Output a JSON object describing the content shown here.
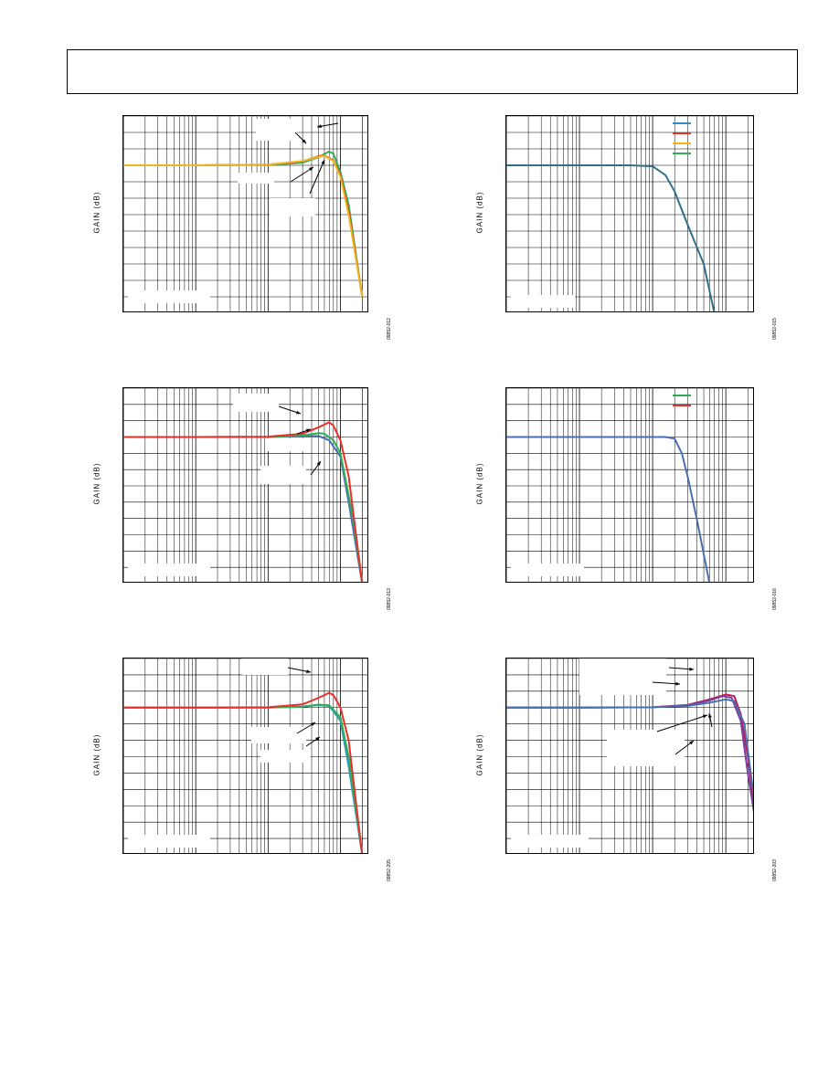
{
  "charts": [
    {
      "id": "p1",
      "ylabel": "GAIN (dB)",
      "figure_id": "09852-012",
      "colors": [
        "#2fae5a",
        "#e8302a",
        "#f2b51d"
      ],
      "legend": [],
      "annotation_arrows": 4
    },
    {
      "id": "p2",
      "ylabel": "GAIN (dB)",
      "figure_id": "09852-015",
      "colors": [
        "#2f6f8c",
        "#e8302a",
        "#f2b51d",
        "#2fae5a"
      ],
      "legend": [
        {
          "color": "#2f8ccf",
          "name": ""
        },
        {
          "color": "#e8302a",
          "name": ""
        },
        {
          "color": "#f2b51d",
          "name": ""
        },
        {
          "color": "#2fae5a",
          "name": ""
        }
      ],
      "annotation_arrows": 0
    },
    {
      "id": "p3",
      "ylabel": "GAIN (dB)",
      "figure_id": "09852-013",
      "colors": [
        "#4a6fb0",
        "#2fae5a",
        "#e8302a"
      ],
      "legend": [],
      "annotation_arrows": 3
    },
    {
      "id": "p4",
      "ylabel": "GAIN (dB)",
      "figure_id": "09852-016",
      "colors": [
        "#4a6fb0",
        "#c0184d"
      ],
      "legend": [
        {
          "color": "#2fae5a",
          "name": ""
        },
        {
          "color": "#e8302a",
          "name": ""
        }
      ],
      "annotation_arrows": 0
    },
    {
      "id": "p5",
      "ylabel": "GAIN (dB)",
      "figure_id": "09852-205",
      "colors": [
        "#2f9ab5",
        "#2fae5a",
        "#e8302a"
      ],
      "legend": [],
      "annotation_arrows": 3
    },
    {
      "id": "p6",
      "ylabel": "GAIN (dB)",
      "figure_id": "09852-203",
      "colors": [
        "#c0184d",
        "#7a3fa0",
        "#4a6fb0",
        "#e8302a"
      ],
      "legend": [],
      "annotation_arrows": 5
    }
  ],
  "chart_data": [
    {
      "type": "line",
      "title": "",
      "xlabel": "",
      "ylabel": "GAIN (dB)",
      "x_scale": "log",
      "grid": true,
      "series": [
        {
          "x": [
            0.001,
            0.01,
            0.1,
            0.3,
            0.5,
            0.7,
            0.8,
            1.0,
            1.3,
            2.0
          ],
          "y": [
            0,
            0,
            0.1,
            0.8,
            2.5,
            4.2,
            3.5,
            -2,
            -12,
            -40
          ]
        },
        {
          "x": [
            0.001,
            0.01,
            0.1,
            0.3,
            0.5,
            0.6,
            0.8,
            1.0,
            1.3,
            2.0
          ],
          "y": [
            0,
            0,
            0.2,
            1.2,
            2.8,
            3.0,
            1.5,
            -3,
            -14,
            -40
          ]
        },
        {
          "x": [
            0.001,
            0.01,
            0.1,
            0.3,
            0.5,
            0.6,
            0.8,
            1.0,
            1.3,
            2.0
          ],
          "y": [
            0,
            0,
            0.2,
            1.3,
            2.6,
            2.9,
            1.3,
            -3.5,
            -15,
            -40
          ]
        }
      ]
    },
    {
      "type": "line",
      "title": "",
      "xlabel": "",
      "ylabel": "GAIN (dB)",
      "x_scale": "log",
      "grid": true,
      "legend_position": "top-right",
      "series": [
        {
          "x": [
            0.001,
            0.01,
            0.05,
            0.1,
            0.15,
            0.2,
            0.3,
            0.5,
            0.7
          ],
          "y": [
            0,
            0,
            0,
            -0.3,
            -3,
            -8,
            -18,
            -30,
            -45
          ]
        }
      ]
    },
    {
      "type": "line",
      "title": "",
      "xlabel": "",
      "ylabel": "GAIN (dB)",
      "x_scale": "log",
      "grid": true,
      "series": [
        {
          "x": [
            0.001,
            0.01,
            0.1,
            0.3,
            0.5,
            0.7,
            1.0,
            1.3,
            2.0
          ],
          "y": [
            0,
            0,
            0,
            0.2,
            0.3,
            -1,
            -6,
            -20,
            -45
          ]
        },
        {
          "x": [
            0.001,
            0.01,
            0.1,
            0.3,
            0.5,
            0.6,
            0.8,
            1.0,
            1.5,
            2.0
          ],
          "y": [
            0,
            0,
            0,
            0.5,
            1.2,
            1.0,
            -1,
            -5,
            -25,
            -45
          ]
        },
        {
          "x": [
            0.001,
            0.01,
            0.1,
            0.3,
            0.5,
            0.7,
            0.8,
            1.0,
            1.3,
            2.0
          ],
          "y": [
            0,
            0,
            0.1,
            1.0,
            3.0,
            4.5,
            3.5,
            -1,
            -12,
            -45
          ]
        }
      ]
    },
    {
      "type": "line",
      "title": "",
      "xlabel": "",
      "ylabel": "GAIN (dB)",
      "x_scale": "log",
      "grid": true,
      "legend_position": "top-right",
      "series": [
        {
          "x": [
            0.001,
            0.01,
            0.1,
            0.15,
            0.2,
            0.25,
            0.3,
            0.4,
            0.6
          ],
          "y": [
            0,
            0,
            0,
            0,
            -0.5,
            -5,
            -12,
            -25,
            -45
          ]
        }
      ]
    },
    {
      "type": "line",
      "title": "",
      "xlabel": "",
      "ylabel": "GAIN (dB)",
      "x_scale": "log",
      "grid": true,
      "series": [
        {
          "x": [
            0.001,
            0.01,
            0.1,
            0.3,
            0.5,
            0.7,
            1.0,
            1.3,
            2.0
          ],
          "y": [
            0,
            0,
            0,
            0.3,
            0.8,
            0.5,
            -4,
            -18,
            -45
          ]
        },
        {
          "x": [
            0.001,
            0.01,
            0.1,
            0.3,
            0.5,
            0.7,
            1.0,
            1.3,
            2.0
          ],
          "y": [
            0,
            0,
            0,
            0.3,
            0.9,
            0.7,
            -3,
            -15,
            -45
          ]
        },
        {
          "x": [
            0.001,
            0.01,
            0.1,
            0.3,
            0.5,
            0.7,
            0.8,
            1.0,
            1.3,
            2.0
          ],
          "y": [
            0,
            0,
            0.1,
            1.0,
            3.0,
            4.5,
            3.8,
            0,
            -10,
            -45
          ]
        }
      ]
    },
    {
      "type": "line",
      "title": "",
      "xlabel": "",
      "ylabel": "GAIN (dB)",
      "x_scale": "log",
      "grid": true,
      "series": [
        {
          "x": [
            0.001,
            0.01,
            0.1,
            0.3,
            0.6,
            1.0,
            1.3,
            1.6,
            2.0,
            3.0
          ],
          "y": [
            0,
            0,
            0.1,
            0.8,
            2.5,
            4.0,
            3.5,
            -2,
            -15,
            -45
          ]
        },
        {
          "x": [
            0.001,
            0.01,
            0.1,
            0.3,
            0.6,
            0.9,
            1.2,
            1.6,
            2.0,
            3.0
          ],
          "y": [
            0,
            0,
            0.1,
            0.7,
            2.2,
            3.5,
            3.0,
            -4,
            -20,
            -45
          ]
        },
        {
          "x": [
            0.001,
            0.01,
            0.1,
            0.3,
            0.6,
            1.0,
            1.3,
            1.8,
            2.5,
            3.0
          ],
          "y": [
            0,
            0,
            0.1,
            0.5,
            1.5,
            2.5,
            2.0,
            -5,
            -30,
            -45
          ]
        }
      ]
    }
  ]
}
